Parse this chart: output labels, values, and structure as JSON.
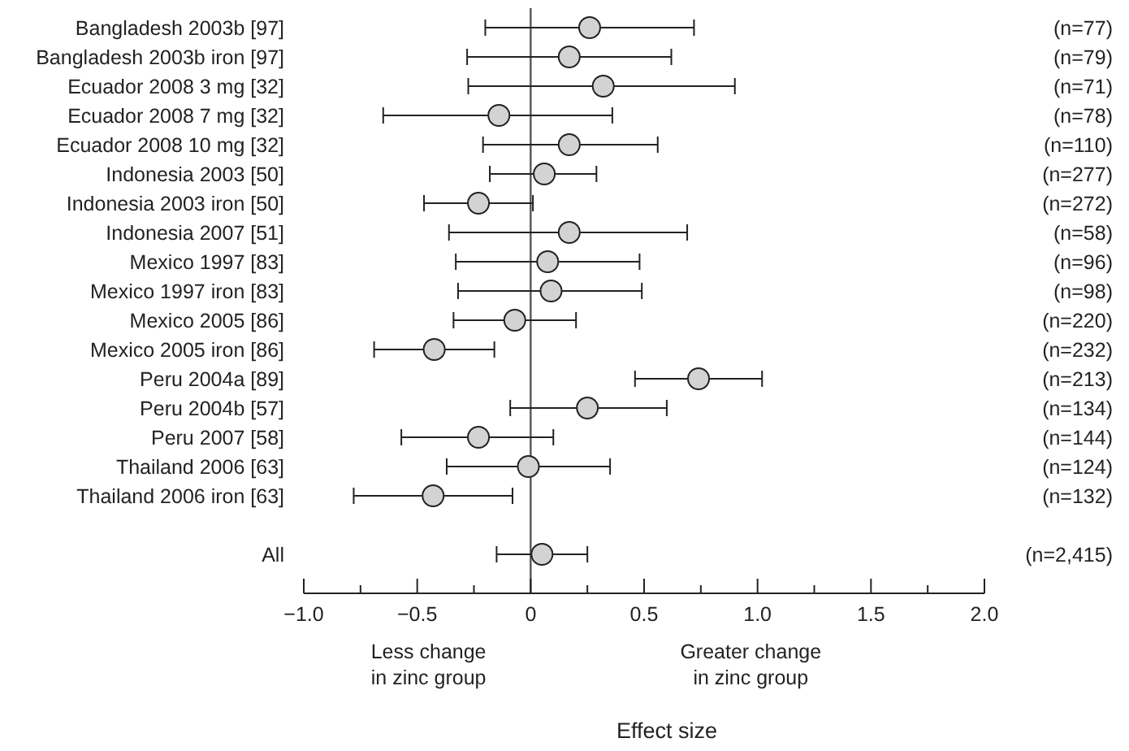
{
  "chart_data": {
    "type": "scatter",
    "orientation": "horizontal",
    "xlabel": "Effect size",
    "marker": "circle",
    "grid": false,
    "categories": [
      "Bangladesh 2003b [97]",
      "Bangladesh 2003b iron [97]",
      "Ecuador 2008 3 mg [32]",
      "Ecuador 2008 7 mg [32]",
      "Ecuador 2008 10 mg [32]",
      "Indonesia 2003 [50]",
      "Indonesia 2003 iron [50]",
      "Indonesia 2007 [51]",
      "Mexico 1997 [83]",
      "Mexico 1997 iron [83]",
      "Mexico 2005 [86]",
      "Mexico 2005 iron [86]",
      "Peru 2004a [89]",
      "Peru 2004b [57]",
      "Peru 2007 [58]",
      "Thailand 2006 [63]",
      "Thailand 2006 iron [63]",
      null,
      "All"
    ],
    "series": [
      {
        "color": "#d3d3d3",
        "values": [
          0.26,
          0.17,
          0.32,
          -0.14,
          0.17,
          0.06,
          -0.23,
          0.17,
          0.075,
          0.09,
          -0.07,
          -0.425,
          0.74,
          0.25,
          -0.23,
          -0.01,
          -0.43,
          null,
          0.05
        ],
        "errors": [
          [
            -0.2,
            0.72
          ],
          [
            -0.28,
            0.62
          ],
          [
            -0.275,
            0.9
          ],
          [
            -0.65,
            0.36
          ],
          [
            -0.21,
            0.56
          ],
          [
            -0.18,
            0.29
          ],
          [
            -0.47,
            0.01
          ],
          [
            -0.36,
            0.69
          ],
          [
            -0.33,
            0.48
          ],
          [
            -0.32,
            0.49
          ],
          [
            -0.34,
            0.2
          ],
          [
            -0.69,
            -0.16
          ],
          [
            0.46,
            1.02
          ],
          [
            -0.09,
            0.6
          ],
          [
            -0.57,
            0.1
          ],
          [
            -0.37,
            0.35
          ],
          [
            -0.78,
            -0.08
          ],
          null,
          [
            -0.15,
            0.25
          ]
        ]
      }
    ],
    "xlim": [
      -1,
      2
    ],
    "xticks": [
      {
        "value": -1,
        "label": "−1.0"
      },
      {
        "value": -0.75,
        "label": null
      },
      {
        "value": -0.5,
        "label": "−0.5"
      },
      {
        "value": -0.25,
        "label": null
      },
      0,
      {
        "value": 0.25,
        "label": null
      },
      {
        "value": 0.5,
        "label": "0.5"
      },
      {
        "value": 0.75,
        "label": null
      },
      {
        "value": 1,
        "label": "1.0"
      },
      {
        "value": 1.25,
        "label": null
      },
      {
        "value": 1.5,
        "label": "1.5"
      },
      {
        "value": 1.75,
        "label": null
      },
      {
        "value": 2,
        "label": "2.0"
      }
    ],
    "ref_lines": [
      {
        "axis": "x",
        "value": 0,
        "color": "#555555"
      }
    ],
    "annotations": [
      "(n=77)",
      "(n=79)",
      "(n=71)",
      "(n=78)",
      "(n=110)",
      "(n=277)",
      "(n=272)",
      "(n=58)",
      "(n=96)",
      "(n=98)",
      "(n=220)",
      "(n=232)",
      "(n=213)",
      "(n=134)",
      "(n=144)",
      "(n=124)",
      "(n=132)",
      "(n=2,415)",
      "Less change\nin zinc group",
      "Greater change\nin zinc group"
    ]
  }
}
